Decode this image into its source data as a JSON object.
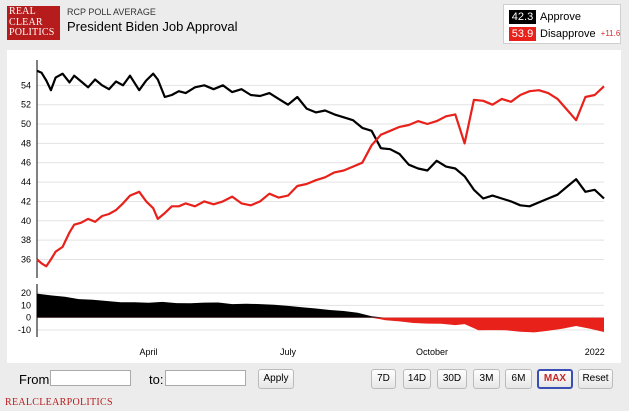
{
  "header": {
    "logo_lines": [
      "REAL",
      "CLEAR",
      "POLITICS"
    ],
    "source_label": "RCP POLL AVERAGE",
    "title": "President Biden Job Approval"
  },
  "legend": {
    "approve": {
      "value": "42.3",
      "label": "Approve",
      "color": "#000000"
    },
    "disapprove": {
      "value": "53.9",
      "label": "Disapprove",
      "color": "#e8211b",
      "spread": "+11.6"
    }
  },
  "controls": {
    "from_label": "From:",
    "to_label": "to:",
    "apply_label": "Apply",
    "ranges": [
      "7D",
      "14D",
      "30D",
      "3M",
      "6M",
      "MAX",
      "Reset"
    ],
    "active_range": "MAX"
  },
  "footer": "REALCLEARPOLITICS",
  "chart_data": [
    {
      "type": "line",
      "title": "President Biden Job Approval",
      "x_ticks": [
        "April",
        "July",
        "October",
        "2022"
      ],
      "x_tick_positions": [
        2.4,
        5.4,
        8.5,
        12.0
      ],
      "ylim": [
        34.5,
        56
      ],
      "y_ticks": [
        36,
        38,
        40,
        42,
        44,
        46,
        48,
        50,
        52,
        54
      ],
      "grid": true,
      "x_note": "x is months since 1 Jan 2021 (fractional)",
      "series": [
        {
          "name": "Approve",
          "color": "#000000",
          "x": [
            0.0,
            0.1,
            0.2,
            0.3,
            0.4,
            0.55,
            0.7,
            0.8,
            0.95,
            1.1,
            1.25,
            1.4,
            1.55,
            1.7,
            1.85,
            2.0,
            2.2,
            2.35,
            2.5,
            2.6,
            2.75,
            2.9,
            3.05,
            3.2,
            3.4,
            3.6,
            3.8,
            4.0,
            4.2,
            4.4,
            4.6,
            4.8,
            5.0,
            5.2,
            5.4,
            5.6,
            5.8,
            6.0,
            6.2,
            6.4,
            6.6,
            6.8,
            7.0,
            7.2,
            7.4,
            7.6,
            7.8,
            8.0,
            8.2,
            8.4,
            8.6,
            8.8,
            9.0,
            9.2,
            9.4,
            9.6,
            9.8,
            10.0,
            10.2,
            10.4,
            10.6,
            10.8,
            11.0,
            11.2,
            11.4,
            11.6,
            11.8,
            12.0,
            12.2
          ],
          "y": [
            55.5,
            55.3,
            54.5,
            53.5,
            54.8,
            55.2,
            54.3,
            55.0,
            54.4,
            53.8,
            54.6,
            54.0,
            53.6,
            54.4,
            54.0,
            55.0,
            53.5,
            54.5,
            55.2,
            54.6,
            52.8,
            53.0,
            53.4,
            53.2,
            53.8,
            54.0,
            53.6,
            54.0,
            53.3,
            53.6,
            53.0,
            52.9,
            53.2,
            52.6,
            52.0,
            52.8,
            51.6,
            51.2,
            51.4,
            51.0,
            50.7,
            50.4,
            49.6,
            49.3,
            47.5,
            47.4,
            46.9,
            45.8,
            45.4,
            45.2,
            46.2,
            45.6,
            45.4,
            44.6,
            43.2,
            42.3,
            42.6,
            42.3,
            42.0,
            41.6,
            41.5,
            41.9,
            42.3,
            42.7,
            43.5,
            44.3,
            43.0,
            43.2,
            42.3
          ]
        },
        {
          "name": "Disapprove",
          "color": "#e8211b",
          "x": [
            0.0,
            0.1,
            0.2,
            0.3,
            0.4,
            0.55,
            0.7,
            0.8,
            0.95,
            1.1,
            1.25,
            1.4,
            1.55,
            1.7,
            1.85,
            2.0,
            2.2,
            2.35,
            2.5,
            2.6,
            2.75,
            2.9,
            3.05,
            3.2,
            3.4,
            3.6,
            3.8,
            4.0,
            4.2,
            4.4,
            4.6,
            4.8,
            5.0,
            5.2,
            5.4,
            5.6,
            5.8,
            6.0,
            6.2,
            6.4,
            6.6,
            6.8,
            7.0,
            7.2,
            7.4,
            7.6,
            7.8,
            8.0,
            8.2,
            8.4,
            8.6,
            8.8,
            9.0,
            9.2,
            9.4,
            9.6,
            9.8,
            10.0,
            10.2,
            10.4,
            10.6,
            10.8,
            11.0,
            11.2,
            11.4,
            11.6,
            11.8,
            12.0,
            12.2
          ],
          "y": [
            36.0,
            35.6,
            35.3,
            36.0,
            36.8,
            37.3,
            38.8,
            39.6,
            39.8,
            40.2,
            39.9,
            40.5,
            40.7,
            41.1,
            41.8,
            42.6,
            43.0,
            42.0,
            41.3,
            40.2,
            40.8,
            41.5,
            41.5,
            41.8,
            41.5,
            42.0,
            41.7,
            42.0,
            42.5,
            41.8,
            41.6,
            42.0,
            42.8,
            42.4,
            42.6,
            43.6,
            43.8,
            44.2,
            44.5,
            45.0,
            45.2,
            45.6,
            46.0,
            47.8,
            48.9,
            49.3,
            49.7,
            49.9,
            50.3,
            50.0,
            50.3,
            50.8,
            51.0,
            48.0,
            52.5,
            52.4,
            52.0,
            52.6,
            52.3,
            53.0,
            53.4,
            53.5,
            53.2,
            52.6,
            51.5,
            50.4,
            52.8,
            53.0,
            53.9
          ]
        }
      ]
    },
    {
      "type": "area",
      "title": "",
      "x_ticks": [
        "April",
        "July",
        "October",
        "2022"
      ],
      "ylim": [
        -14,
        24
      ],
      "y_ticks": [
        -10,
        0,
        10,
        20
      ],
      "grid": true,
      "series": [
        {
          "name": "",
          "positive_color": "#000000",
          "negative_color": "#e8211b",
          "x": [
            0.0,
            0.3,
            0.6,
            0.9,
            1.2,
            1.5,
            1.8,
            2.1,
            2.4,
            2.7,
            3.0,
            3.3,
            3.6,
            3.9,
            4.2,
            4.5,
            4.8,
            5.1,
            5.4,
            5.7,
            6.0,
            6.3,
            6.6,
            6.9,
            7.2,
            7.5,
            7.8,
            8.1,
            8.4,
            8.7,
            9.0,
            9.2,
            9.5,
            9.8,
            10.1,
            10.4,
            10.7,
            11.0,
            11.3,
            11.6,
            11.9,
            12.2
          ],
          "y": [
            19.5,
            18.0,
            17.0,
            15.0,
            14.5,
            13.5,
            12.5,
            12.5,
            12.0,
            12.8,
            11.8,
            11.7,
            12.2,
            12.3,
            11.0,
            11.3,
            11.0,
            10.4,
            9.5,
            8.4,
            7.4,
            6.2,
            5.4,
            4.0,
            1.2,
            -2.0,
            -3.0,
            -4.3,
            -4.8,
            -4.9,
            -6.0,
            -5.2,
            -10.2,
            -10.0,
            -10.2,
            -11.4,
            -11.9,
            -10.5,
            -8.9,
            -6.7,
            -9.0,
            -11.6
          ]
        }
      ]
    }
  ]
}
